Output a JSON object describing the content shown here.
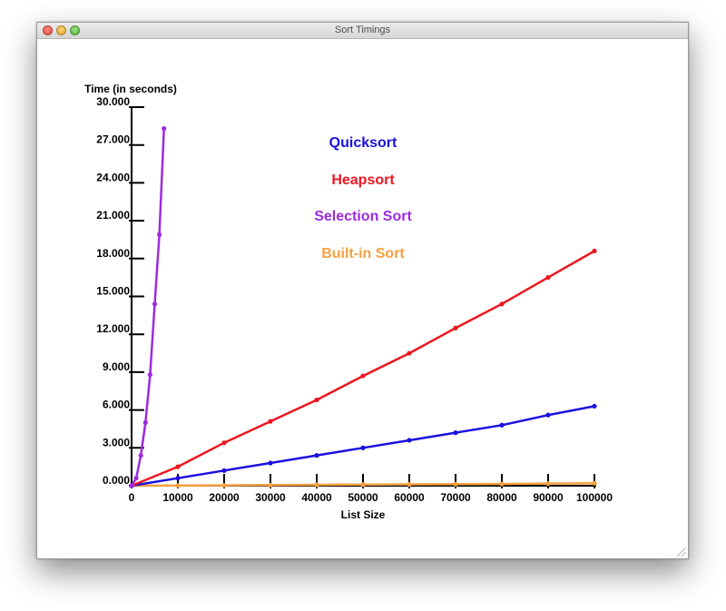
{
  "window": {
    "title": "Sort Timings"
  },
  "chart_data": {
    "type": "line",
    "title": "",
    "xlabel": "List Size",
    "ylabel": "Time (in seconds)",
    "xlim": [
      0,
      100000
    ],
    "ylim": [
      0,
      30
    ],
    "x_ticks": [
      "0",
      "10000",
      "20000",
      "30000",
      "40000",
      "50000",
      "60000",
      "70000",
      "80000",
      "90000",
      "100000"
    ],
    "y_ticks": [
      "0.000",
      "3.000",
      "6.000",
      "9.000",
      "12.000",
      "15.000",
      "18.000",
      "21.000",
      "24.000",
      "27.000",
      "30.000"
    ],
    "legend_position": "top-center",
    "series": [
      {
        "name": "Quicksort",
        "color": "#1a10e0",
        "x": [
          0,
          10000,
          20000,
          30000,
          40000,
          50000,
          60000,
          70000,
          80000,
          90000,
          100000
        ],
        "y": [
          0.0,
          0.6,
          1.2,
          1.8,
          2.4,
          3.0,
          3.6,
          4.2,
          4.8,
          5.6,
          6.3
        ]
      },
      {
        "name": "Heapsort",
        "color": "#ee1620",
        "x": [
          0,
          10000,
          20000,
          30000,
          40000,
          50000,
          60000,
          70000,
          80000,
          90000,
          100000
        ],
        "y": [
          0.0,
          1.5,
          3.4,
          5.1,
          6.8,
          8.7,
          10.5,
          12.5,
          14.4,
          16.5,
          18.6
        ]
      },
      {
        "name": "Selection Sort",
        "color": "#9e2ae0",
        "x": [
          0,
          1000,
          2000,
          3000,
          4000,
          5000,
          6000,
          7000
        ],
        "y": [
          0.0,
          0.6,
          2.4,
          5.0,
          8.8,
          14.4,
          19.9,
          28.3
        ]
      },
      {
        "name": "Built-in Sort",
        "color": "#f5a040",
        "x": [
          0,
          10000,
          20000,
          30000,
          40000,
          50000,
          60000,
          70000,
          80000,
          90000,
          100000
        ],
        "y": [
          0.0,
          0.02,
          0.03,
          0.05,
          0.07,
          0.09,
          0.11,
          0.12,
          0.14,
          0.17,
          0.2
        ]
      }
    ]
  }
}
